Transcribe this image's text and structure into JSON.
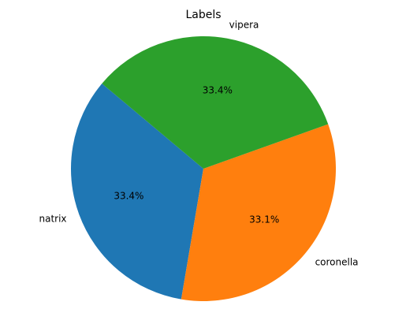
{
  "chart_data": {
    "type": "pie",
    "title": "Labels",
    "slices": [
      {
        "label": "natrix",
        "percent": 33.4,
        "pct_label": "33.4%",
        "color": "#1f77b4"
      },
      {
        "label": "coronella",
        "percent": 33.1,
        "pct_label": "33.1%",
        "color": "#ff7f0e"
      },
      {
        "label": "vipera",
        "percent": 33.4,
        "pct_label": "33.4%",
        "color": "#2ca02c"
      }
    ],
    "start_angle_deg": 140,
    "direction": "counterclockwise",
    "legend": "none"
  }
}
